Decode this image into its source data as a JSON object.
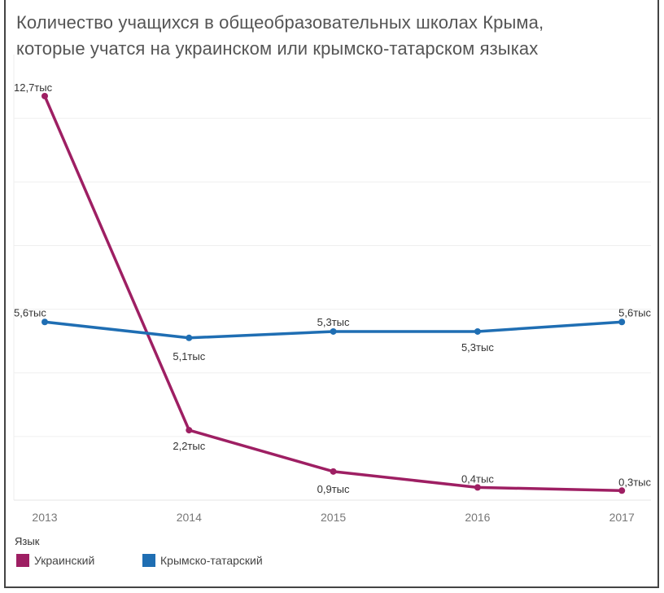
{
  "chart_data": {
    "type": "line",
    "title": "Количество учащихся в общеобразовательных школах Крыма, которые учатся на украинском или крымско-татарском языках",
    "title_lines": [
      "Количество учащихся в общеобразовательных школах Крыма,",
      "которые учатся на украинском или крымско-татарском языках"
    ],
    "x": [
      "2013",
      "2014",
      "2015",
      "2016",
      "2017"
    ],
    "ylim": [
      0,
      12.7
    ],
    "grid": true,
    "unit_suffix": "тыс",
    "series": [
      {
        "name": "Украинский",
        "color": "#9e1f63",
        "values": [
          12.7,
          2.2,
          0.9,
          0.4,
          0.3
        ],
        "labels": [
          "12,7тыс",
          "2,2тыс",
          "0,9тыс",
          "0,4тыс",
          "0,3тыс"
        ]
      },
      {
        "name": "Крымско-татарский",
        "color": "#1f6eb3",
        "values": [
          5.6,
          5.1,
          5.3,
          5.3,
          5.6
        ],
        "labels": [
          "5,6тыс",
          "5,1тыс",
          "5,3тыс",
          "5,3тыс",
          "5,6тыс"
        ]
      }
    ],
    "legend_title": "Язык",
    "legend_position": "bottom-left"
  }
}
